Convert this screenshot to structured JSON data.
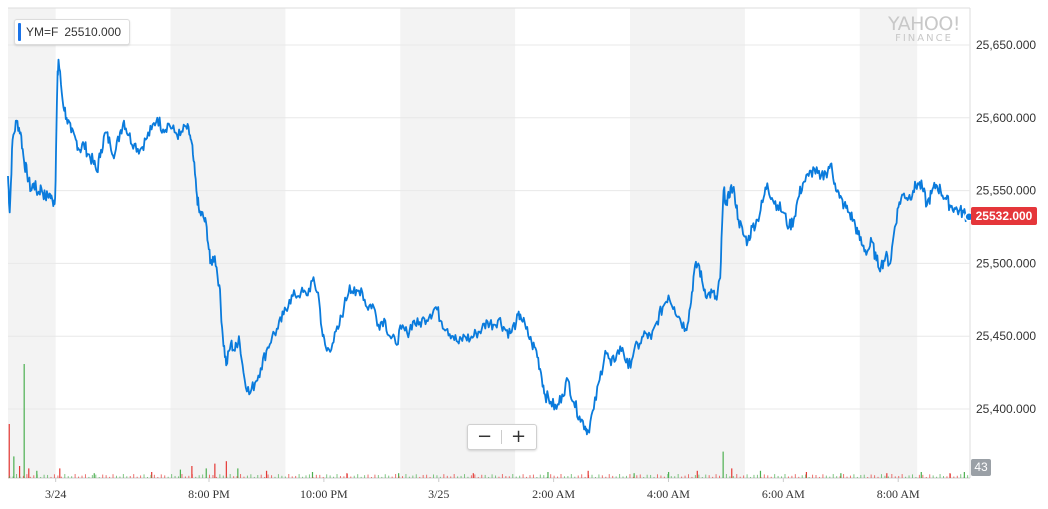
{
  "quote": {
    "symbol": "YM=F",
    "value": "25510.000"
  },
  "watermark": {
    "line1": "YAHOO!",
    "line2": "FINANCE"
  },
  "zoom": {
    "minus": "−",
    "plus": "+"
  },
  "price_badge": "25532.000",
  "volume_badge": "43",
  "colors": {
    "line": "#0a7bdc",
    "shade": "#f3f3f3",
    "grid": "#e8e8e8",
    "badge": "#e5363a",
    "vol_up": "#4caf50",
    "vol_down": "#e53935"
  },
  "chart_data": {
    "type": "line",
    "title": "",
    "xlabel": "",
    "ylabel": "",
    "series": [
      {
        "name": "YM=F",
        "values": []
      }
    ],
    "x_range_hours": [
      16.5,
      33.25
    ],
    "x_unit": "hours since 3/24 00:00",
    "ylim": [
      25360,
      25680
    ],
    "yticks": [
      "25,400.000",
      "25,450.000",
      "25,500.000",
      "25,550.000",
      "25,600.000",
      "25,650.000"
    ],
    "ytick_values": [
      25400,
      25450,
      25500,
      25550,
      25600,
      25650
    ],
    "xticks": [
      {
        "label": "3/24",
        "hour": 17.33
      },
      {
        "label": "8:00 PM",
        "hour": 20
      },
      {
        "label": "10:00 PM",
        "hour": 22
      },
      {
        "label": "3/25",
        "hour": 24
      },
      {
        "label": "2:00 AM",
        "hour": 26
      },
      {
        "label": "4:00 AM",
        "hour": 28
      },
      {
        "label": "6:00 AM",
        "hour": 30
      },
      {
        "label": "8:00 AM",
        "hour": 32
      }
    ],
    "shaded_bands_hours": [
      [
        16.5,
        17.33
      ],
      [
        19.33,
        21.33
      ],
      [
        23.33,
        25.33
      ],
      [
        27.33,
        29.33
      ],
      [
        31.33,
        32.33
      ]
    ],
    "points": [
      [
        16.5,
        25560
      ],
      [
        16.53,
        25535
      ],
      [
        16.58,
        25585
      ],
      [
        16.65,
        25598
      ],
      [
        16.72,
        25590
      ],
      [
        16.78,
        25570
      ],
      [
        16.83,
        25562
      ],
      [
        16.9,
        25550
      ],
      [
        16.95,
        25555
      ],
      [
        17.02,
        25548
      ],
      [
        17.08,
        25552
      ],
      [
        17.15,
        25545
      ],
      [
        17.22,
        25548
      ],
      [
        17.28,
        25542
      ],
      [
        17.32,
        25545
      ],
      [
        17.36,
        25625
      ],
      [
        17.38,
        25640
      ],
      [
        17.45,
        25612
      ],
      [
        17.52,
        25600
      ],
      [
        17.6,
        25590
      ],
      [
        17.68,
        25585
      ],
      [
        17.75,
        25578
      ],
      [
        17.82,
        25582
      ],
      [
        17.9,
        25575
      ],
      [
        17.98,
        25570
      ],
      [
        18.05,
        25563
      ],
      [
        18.12,
        25578
      ],
      [
        18.2,
        25590
      ],
      [
        18.28,
        25582
      ],
      [
        18.36,
        25575
      ],
      [
        18.45,
        25590
      ],
      [
        18.52,
        25598
      ],
      [
        18.6,
        25588
      ],
      [
        18.7,
        25582
      ],
      [
        18.8,
        25578
      ],
      [
        18.9,
        25585
      ],
      [
        19.0,
        25592
      ],
      [
        19.1,
        25600
      ],
      [
        19.2,
        25592
      ],
      [
        19.3,
        25596
      ],
      [
        19.4,
        25590
      ],
      [
        19.5,
        25588
      ],
      [
        19.6,
        25594
      ],
      [
        19.67,
        25588
      ],
      [
        19.72,
        25575
      ],
      [
        19.78,
        25550
      ],
      [
        19.83,
        25535
      ],
      [
        19.9,
        25532
      ],
      [
        19.96,
        25525
      ],
      [
        20.02,
        25500
      ],
      [
        20.1,
        25505
      ],
      [
        20.18,
        25485
      ],
      [
        20.24,
        25450
      ],
      [
        20.3,
        25430
      ],
      [
        20.38,
        25445
      ],
      [
        20.45,
        25440
      ],
      [
        20.52,
        25450
      ],
      [
        20.6,
        25425
      ],
      [
        20.7,
        25410
      ],
      [
        20.8,
        25418
      ],
      [
        20.9,
        25428
      ],
      [
        21.0,
        25440
      ],
      [
        21.1,
        25450
      ],
      [
        21.2,
        25455
      ],
      [
        21.3,
        25465
      ],
      [
        21.4,
        25475
      ],
      [
        21.5,
        25478
      ],
      [
        21.6,
        25480
      ],
      [
        21.7,
        25478
      ],
      [
        21.8,
        25488
      ],
      [
        21.9,
        25480
      ],
      [
        21.98,
        25450
      ],
      [
        22.05,
        25440
      ],
      [
        22.15,
        25445
      ],
      [
        22.25,
        25455
      ],
      [
        22.35,
        25470
      ],
      [
        22.45,
        25485
      ],
      [
        22.55,
        25478
      ],
      [
        22.65,
        25483
      ],
      [
        22.75,
        25470
      ],
      [
        22.85,
        25472
      ],
      [
        22.95,
        25458
      ],
      [
        23.05,
        25462
      ],
      [
        23.15,
        25450
      ],
      [
        23.25,
        25445
      ],
      [
        23.35,
        25455
      ],
      [
        23.45,
        25452
      ],
      [
        23.55,
        25460
      ],
      [
        23.65,
        25458
      ],
      [
        23.75,
        25462
      ],
      [
        23.85,
        25465
      ],
      [
        23.95,
        25470
      ],
      [
        24.05,
        25460
      ],
      [
        24.15,
        25455
      ],
      [
        24.25,
        25450
      ],
      [
        24.35,
        25445
      ],
      [
        24.45,
        25450
      ],
      [
        24.55,
        25448
      ],
      [
        24.65,
        25452
      ],
      [
        24.75,
        25455
      ],
      [
        24.85,
        25460
      ],
      [
        24.95,
        25458
      ],
      [
        25.05,
        25462
      ],
      [
        25.15,
        25455
      ],
      [
        25.25,
        25452
      ],
      [
        25.35,
        25460
      ],
      [
        25.42,
        25465
      ],
      [
        25.52,
        25455
      ],
      [
        25.62,
        25445
      ],
      [
        25.7,
        25440
      ],
      [
        25.78,
        25425
      ],
      [
        25.85,
        25410
      ],
      [
        25.95,
        25405
      ],
      [
        26.05,
        25400
      ],
      [
        26.15,
        25410
      ],
      [
        26.25,
        25420
      ],
      [
        26.35,
        25405
      ],
      [
        26.45,
        25395
      ],
      [
        26.55,
        25388
      ],
      [
        26.6,
        25385
      ],
      [
        26.7,
        25400
      ],
      [
        26.8,
        25420
      ],
      [
        26.9,
        25440
      ],
      [
        27.0,
        25430
      ],
      [
        27.1,
        25438
      ],
      [
        27.2,
        25442
      ],
      [
        27.3,
        25428
      ],
      [
        27.4,
        25440
      ],
      [
        27.5,
        25445
      ],
      [
        27.6,
        25452
      ],
      [
        27.7,
        25448
      ],
      [
        27.8,
        25460
      ],
      [
        27.9,
        25470
      ],
      [
        28.0,
        25478
      ],
      [
        28.1,
        25470
      ],
      [
        28.2,
        25462
      ],
      [
        28.3,
        25455
      ],
      [
        28.38,
        25470
      ],
      [
        28.45,
        25495
      ],
      [
        28.52,
        25500
      ],
      [
        28.6,
        25485
      ],
      [
        28.68,
        25478
      ],
      [
        28.76,
        25480
      ],
      [
        28.84,
        25475
      ],
      [
        28.9,
        25490
      ],
      [
        28.96,
        25550
      ],
      [
        29.02,
        25540
      ],
      [
        29.08,
        25552
      ],
      [
        29.15,
        25548
      ],
      [
        29.22,
        25530
      ],
      [
        29.3,
        25520
      ],
      [
        29.38,
        25515
      ],
      [
        29.46,
        25525
      ],
      [
        29.55,
        25530
      ],
      [
        29.64,
        25542
      ],
      [
        29.72,
        25555
      ],
      [
        29.8,
        25545
      ],
      [
        29.9,
        25540
      ],
      [
        30.0,
        25535
      ],
      [
        30.1,
        25525
      ],
      [
        30.18,
        25530
      ],
      [
        30.26,
        25545
      ],
      [
        30.34,
        25555
      ],
      [
        30.44,
        25560
      ],
      [
        30.54,
        25565
      ],
      [
        30.64,
        25558
      ],
      [
        30.74,
        25562
      ],
      [
        30.82,
        25568
      ],
      [
        30.9,
        25555
      ],
      [
        30.98,
        25545
      ],
      [
        31.06,
        25540
      ],
      [
        31.14,
        25535
      ],
      [
        31.22,
        25530
      ],
      [
        31.3,
        25520
      ],
      [
        31.38,
        25512
      ],
      [
        31.46,
        25508
      ],
      [
        31.54,
        25515
      ],
      [
        31.62,
        25502
      ],
      [
        31.7,
        25498
      ],
      [
        31.78,
        25505
      ],
      [
        31.86,
        25500
      ],
      [
        31.94,
        25525
      ],
      [
        32.02,
        25542
      ],
      [
        32.1,
        25548
      ],
      [
        32.18,
        25545
      ],
      [
        32.26,
        25550
      ],
      [
        32.34,
        25555
      ],
      [
        32.42,
        25552
      ],
      [
        32.5,
        25540
      ],
      [
        32.58,
        25548
      ],
      [
        32.66,
        25554
      ],
      [
        32.74,
        25550
      ],
      [
        32.82,
        25545
      ],
      [
        32.9,
        25540
      ],
      [
        32.98,
        25538
      ],
      [
        33.06,
        25536
      ],
      [
        33.14,
        25535
      ],
      [
        33.2,
        25532
      ]
    ],
    "volume": {
      "max": 100,
      "bars": [
        [
          16.52,
          45,
          "down"
        ],
        [
          16.6,
          18,
          "up"
        ],
        [
          16.7,
          10,
          "down"
        ],
        [
          16.78,
          95,
          "up"
        ],
        [
          16.86,
          8,
          "down"
        ],
        [
          17.0,
          6,
          "up"
        ],
        [
          17.4,
          8,
          "down"
        ],
        [
          18.0,
          4,
          "up"
        ],
        [
          19.0,
          5,
          "down"
        ],
        [
          19.5,
          7,
          "up"
        ],
        [
          19.7,
          10,
          "down"
        ],
        [
          19.95,
          8,
          "up"
        ],
        [
          20.1,
          12,
          "down"
        ],
        [
          20.3,
          14,
          "down"
        ],
        [
          20.5,
          8,
          "up"
        ],
        [
          21.0,
          6,
          "down"
        ],
        [
          21.8,
          5,
          "up"
        ],
        [
          22.4,
          4,
          "down"
        ],
        [
          23.3,
          4,
          "up"
        ],
        [
          24.6,
          4,
          "down"
        ],
        [
          25.9,
          5,
          "up"
        ],
        [
          26.6,
          6,
          "down"
        ],
        [
          27.4,
          4,
          "up"
        ],
        [
          28.0,
          5,
          "up"
        ],
        [
          28.5,
          6,
          "down"
        ],
        [
          28.95,
          22,
          "up"
        ],
        [
          29.1,
          8,
          "down"
        ],
        [
          29.6,
          6,
          "up"
        ],
        [
          30.4,
          5,
          "down"
        ],
        [
          31.0,
          4,
          "up"
        ],
        [
          31.8,
          4,
          "down"
        ],
        [
          32.4,
          5,
          "up"
        ],
        [
          32.9,
          4,
          "down"
        ],
        [
          33.15,
          5,
          "up"
        ]
      ]
    }
  }
}
